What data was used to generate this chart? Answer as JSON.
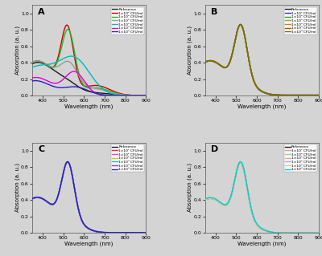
{
  "background_color": "#d4d4d4",
  "panel_labels": [
    "A",
    "B",
    "C",
    "D"
  ],
  "xlabel": "Wavelength (nm)",
  "ylabel": "Absorption (a. u.)",
  "xlim": [
    350,
    900
  ],
  "ylim": [
    0.0,
    1.1
  ],
  "yticks": [
    0.0,
    0.2,
    0.4,
    0.6,
    0.8,
    1.0
  ],
  "xticks": [
    400,
    500,
    600,
    700,
    800,
    900
  ],
  "legend_labels": [
    "Reference",
    "1×10¹ CFU/ml",
    "1×10² CFU/ml",
    "1×10³ CFU/ml",
    "1×10⁴ CFU/ml",
    "1×10⁵ CFU/ml",
    "1×10⁶ CFU/ml"
  ],
  "panelA_colors": [
    "#1a1a1a",
    "#cc0000",
    "#22bb22",
    "#999999",
    "#00bbbb",
    "#dd00dd",
    "#2222bb"
  ],
  "panelB_colors": [
    "#1a1a1a",
    "#3333ee",
    "#22aa22",
    "#aa9944",
    "#cc8800",
    "#cc4400",
    "#667700"
  ],
  "panelC_colors": [
    "#1a1a1a",
    "#ee2222",
    "#ee44cc",
    "#cccc00",
    "#00cccc",
    "#9933ee",
    "#2222cc"
  ],
  "panelD_colors": [
    "#1a1a1a",
    "#dd9999",
    "#88dd88",
    "#ddaaaa",
    "#aaaadd",
    "#ddcc88",
    "#00cccc"
  ]
}
